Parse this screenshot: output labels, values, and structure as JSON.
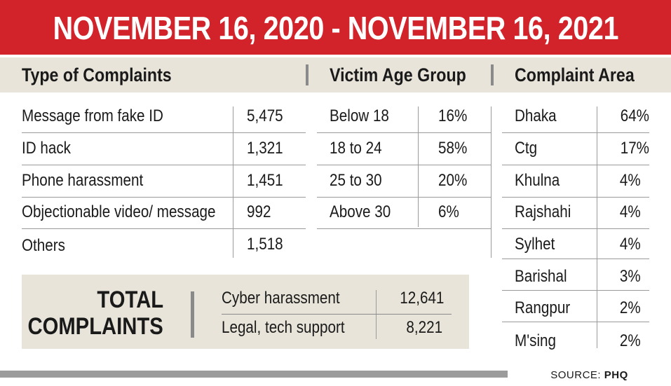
{
  "title": "NOVEMBER 16, 2020 - NOVEMBER 16, 2021",
  "headers": {
    "complaints": "Type of Complaints",
    "age": "Victim Age Group",
    "area": "Complaint Area"
  },
  "complaints": [
    {
      "type": "Message from fake ID",
      "count": "5,475"
    },
    {
      "type": "ID hack",
      "count": "1,321"
    },
    {
      "type": "Phone harassment",
      "count": "1,451"
    },
    {
      "type": "Objectionable video/ message",
      "count": "992"
    },
    {
      "type": "Others",
      "count": "1,518"
    }
  ],
  "age_groups": [
    {
      "group": "Below 18",
      "percent": "16%"
    },
    {
      "group": "18 to 24",
      "percent": "58%"
    },
    {
      "group": "25 to 30",
      "percent": "20%"
    },
    {
      "group": "Above 30",
      "percent": "6%"
    }
  ],
  "areas": [
    {
      "area": "Dhaka",
      "percent": "64%"
    },
    {
      "area": "Ctg",
      "percent": "17%"
    },
    {
      "area": "Khulna",
      "percent": "4%"
    },
    {
      "area": "Rajshahi",
      "percent": "4%"
    },
    {
      "area": "Sylhet",
      "percent": "4%"
    },
    {
      "area": "Barishal",
      "percent": "3%"
    },
    {
      "area": "Rangpur",
      "percent": "2%"
    },
    {
      "area": "M'sing",
      "percent": "2%"
    }
  ],
  "total": {
    "title_line1": "TOTAL",
    "title_line2": "COMPLAINTS",
    "rows": [
      {
        "label": "Cyber harassment",
        "value": "12,641"
      },
      {
        "label": "Legal, tech support",
        "value": "8,221"
      }
    ]
  },
  "source": {
    "prefix": "SOURCE:",
    "name": "PHQ"
  },
  "colors": {
    "banner": "#d2232a",
    "band": "#e8e4d9",
    "rule": "#9b9b9b"
  }
}
